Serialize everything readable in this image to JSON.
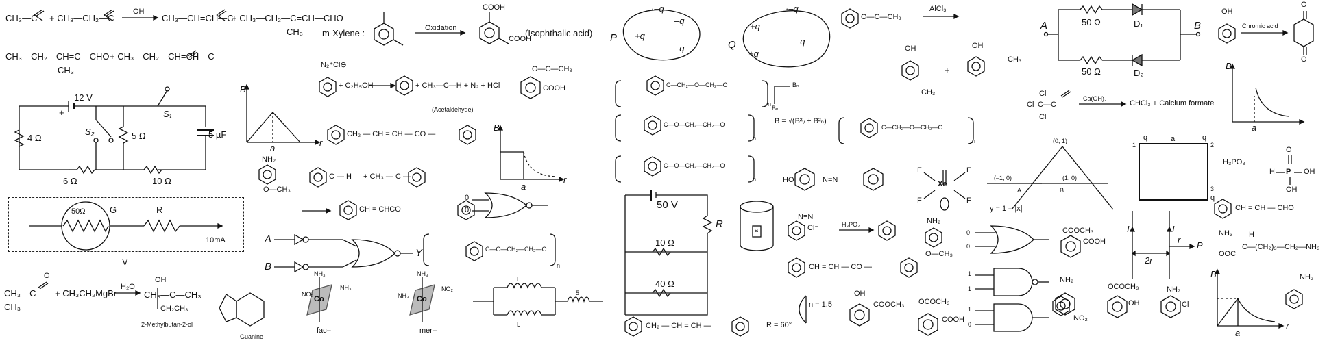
{
  "text": {
    "r1_a": "CH₃—C",
    "r1_b": "+ CH₃—CH₂—C",
    "r1_oh": "OH⁻",
    "r1_c": "CH₃—CH=CH—C",
    "r1_d": "+ CH₃—CH₂—C=CH—CHO",
    "r1_e": "CH₃",
    "r1_H": "H",
    "r1_O": "O",
    "r2_a": "CH₃—CH₂—CH=C—CHO",
    "r2_b": "CH₃",
    "r2_c": "+ CH₃—CH₂—CH=CH—C",
    "c1_12v": "12 V",
    "c1_plus": "+",
    "c1_4ohm": "4 Ω",
    "c1_5ohm": "5 Ω",
    "c1_5uf": "5 µF",
    "c1_6ohm": "6 Ω",
    "c1_10ohm": "10 Ω",
    "c1_s1": "S₁",
    "c1_s2": "S₂",
    "g_50": "50Ω",
    "g_G": "G",
    "g_R": "R",
    "g_10ma": "10mA",
    "g_V": "V",
    "grig_a": "CH₃—C",
    "grig_b": "+ CH₃CH₂MgBr",
    "grig_h2o": "H₂O",
    "grig_oh": "OH",
    "grig_c": "CH₃—C—CH₃",
    "grig_d": "CH₂CH₃",
    "grig_name": "2-Methylbutan-2-ol",
    "grig_O": "O",
    "grig_CH3": "CH₃",
    "guanine": "Guanine",
    "fac": "fac–",
    "mer": "mer–",
    "nh3": "NH₃",
    "no2": "NO₂",
    "co": "Co",
    "ind_L": "L",
    "ind_5": "5",
    "xyl_a": "m-Xylene :",
    "xyl_ox": "Oxidation",
    "xyl_cooh": "COOH",
    "xyl_iso": "(Isophthalic acid)",
    "diaz_a": "N₂⁺Cl⊖",
    "diaz_b": "+ C₂H₅OH",
    "diaz_c": "+ CH₃—C—H + N₂ + HCl",
    "diaz_acet": "(Acetaldehyde)",
    "asp_a": "O—C—CH₃",
    "asp_b": "COOH",
    "chalc": "CH₂ — CH = CH — CO —",
    "B": "B",
    "r": "r",
    "a": "a",
    "nh2": "NH₂",
    "och3": "O—CH₃",
    "benz_cho": "C — H",
    "benz_plus": "+ CH₃ — C —",
    "chalc2": "CH = CHCO",
    "logic_A": "A",
    "logic_B": "B",
    "logic_Y": "Y",
    "bit0": "0",
    "bit1": "1",
    "poly_a": "C—O—CH₂—CH₂—O",
    "poly_n": "n",
    "qP": "P",
    "qQ": "Q",
    "pq": "+q",
    "mq": "–q",
    "mq2": "·–q",
    "ester_a": "O—C—CH₃",
    "alcl3": "AlCl₃",
    "oh": "OH",
    "ch3": "CH₃",
    "plus": "+",
    "pet1": "C—CH₂—O—CH₂—O",
    "pet2": "C—O—CH₂—CH₂—O",
    "Bn": "Bₙ",
    "Bv": "Bᵥ",
    "Beq": "B = √(B²ᵥ + B²ₙ)",
    "c2_50v": "50 V",
    "c2_R": "R",
    "c2_10": "10 Ω",
    "c2_40": "40 Ω",
    "cyl_a": "a",
    "azo": "HO",
    "Hh": "H",
    "NN": "N=N",
    "diaz2": "N≡N",
    "cl": "Cl⁻",
    "h3po2": "H₃PO₂",
    "xe": "Xe",
    "F": "F",
    "stil": "CH = CH — CO —",
    "n15": "n = 1.5",
    "R60": "R = 60°",
    "cooch3": "COOCH₃",
    "ococh3": "OCOCH₃",
    "cooh": "COOH",
    "dibenz": "CH₂ — CH = CH —",
    "tri_01": "(0, 1)",
    "tri_m10": "(–1, 0)",
    "tri_10": "(1, 0)",
    "tri_A": "A",
    "tri_B": "B",
    "tri_eq": "y = 1 – |x|",
    "wire_I": "I",
    "wire_2r": "2r",
    "wire_r": "r",
    "wire_P": "P",
    "d_A": "A",
    "d_B": "B",
    "d_50a": "50 Ω",
    "d_50b": "50 Ω",
    "d_D1": "D₁",
    "d_D2": "D₂",
    "cl3_a": "Cl",
    "cl3_c": "C—C",
    "caoh": "Ca(OH)₂",
    "chcl3": "CHCl₃ + Calcium formate",
    "chrom": "Chromic acid",
    "sq_q": "q",
    "sq_a": "a",
    "sq_1": "1",
    "sq_2": "2",
    "sq_3": "3",
    "h3po3": "H₃PO₃",
    "P": "P",
    "cinn": "CH = CH — CHO",
    "lys_a": "NH₃",
    "lys_b": "C—(CH₂)₃—CH₂—NH₃",
    "lys_c": "OOC",
    "lys_H": "H",
    "no2b": "NO₂",
    "nh2b": "NH₂",
    "ococh3b": "OCOCH₃",
    "ohb": "OH",
    "clb": "Cl"
  },
  "palette": {
    "ink": "#111111",
    "bg": "#ffffff",
    "dash": "#222222"
  }
}
